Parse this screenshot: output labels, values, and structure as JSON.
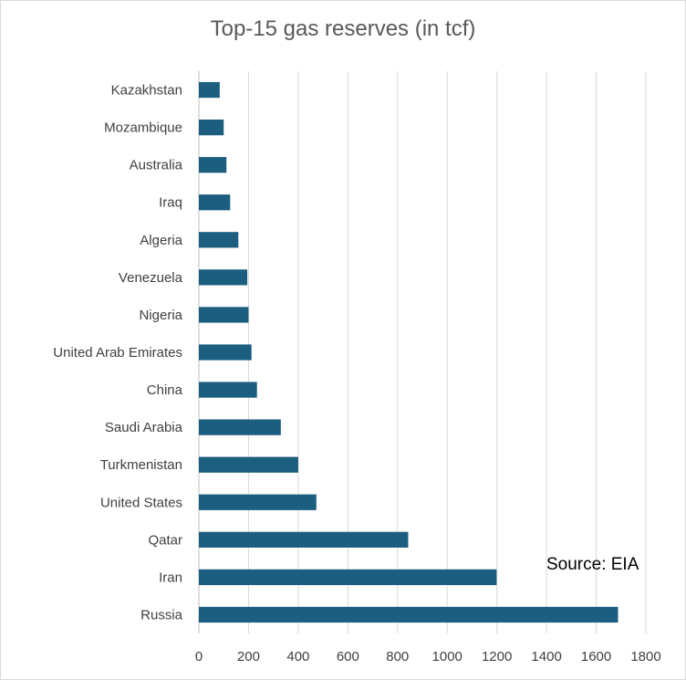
{
  "chart_data": {
    "type": "bar",
    "orientation": "horizontal",
    "title": "Top-15 gas reserves (in tcf)",
    "annotation": "Source: EIA",
    "categories": [
      "Russia",
      "Iran",
      "Qatar",
      "United States",
      "Turkmenistan",
      "Saudi Arabia",
      "China",
      "United Arab Emirates",
      "Nigeria",
      "Venezuela",
      "Algeria",
      "Iraq",
      "Australia",
      "Mozambique",
      "Kazakhstan"
    ],
    "values": [
      1688,
      1199,
      843,
      473,
      400,
      330,
      234,
      212,
      200,
      195,
      159,
      126,
      111,
      100,
      84
    ],
    "xlim": [
      0,
      1800
    ],
    "xticks": [
      0,
      200,
      400,
      600,
      800,
      1000,
      1200,
      1400,
      1600,
      1800
    ],
    "grid": "vertical",
    "bar_color": "#1b5e80",
    "legend": "none"
  }
}
